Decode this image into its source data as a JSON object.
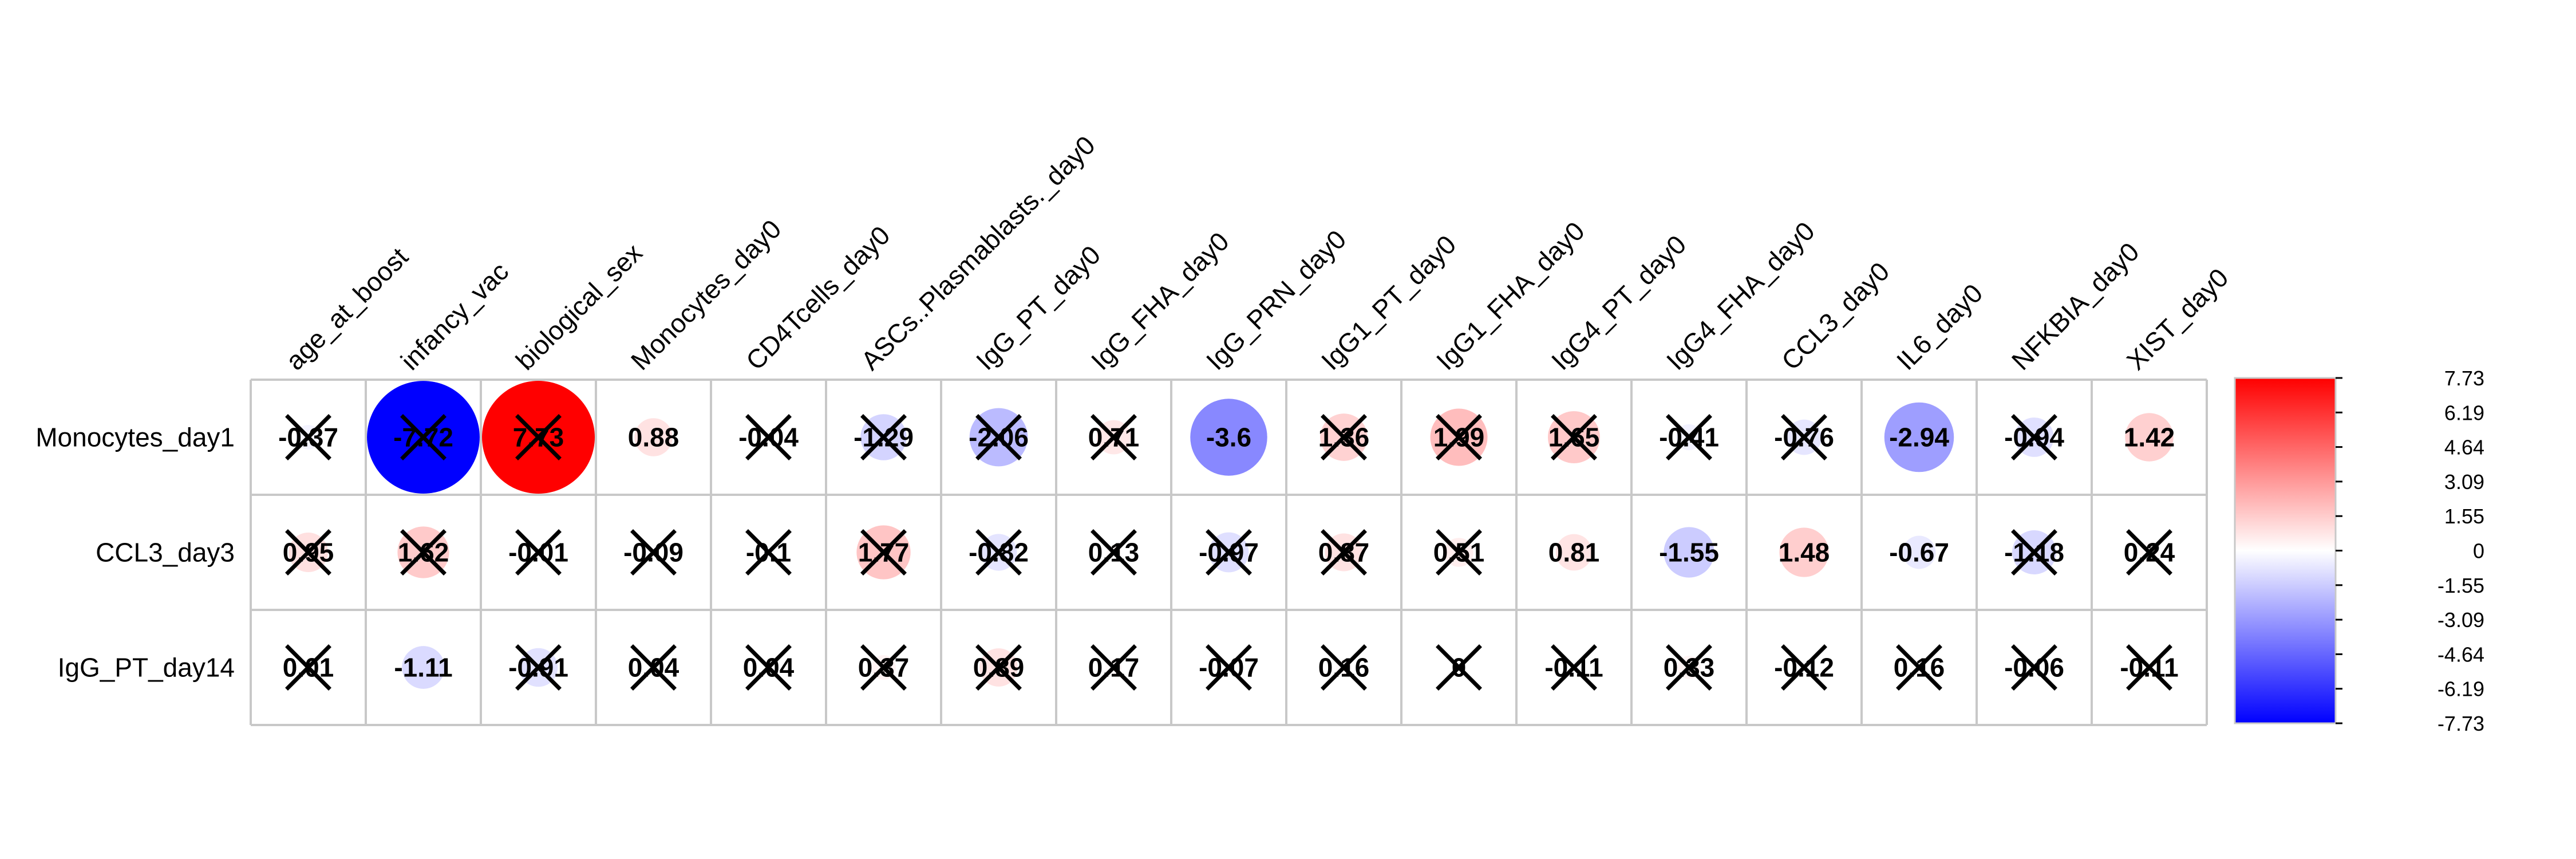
{
  "chart_data": {
    "type": "heatmap",
    "rows": [
      "Monocytes_day1",
      "CCL3_day3",
      "IgG_PT_day14"
    ],
    "columns": [
      "age_at_boost",
      "infancy_vac",
      "biological_sex",
      "Monocytes_day0",
      "CD4Tcells_day0",
      "ASCs..Plasmablasts._day0",
      "IgG_PT_day0",
      "IgG_FHA_day0",
      "IgG_PRN_day0",
      "IgG1_PT_day0",
      "IgG1_FHA_day0",
      "IgG4_PT_day0",
      "IgG4_FHA_day0",
      "CCL3_day0",
      "IL6_day0",
      "NFKBIA_day0",
      "XIST_day0"
    ],
    "values": [
      [
        -0.37,
        -7.72,
        7.73,
        0.88,
        -0.04,
        -1.29,
        -2.06,
        0.71,
        -3.6,
        1.36,
        1.99,
        1.65,
        -0.41,
        -0.76,
        -2.94,
        -0.94,
        1.42
      ],
      [
        0.95,
        1.62,
        -0.01,
        -0.09,
        -0.1,
        1.77,
        -0.82,
        0.13,
        -0.97,
        0.87,
        0.51,
        0.81,
        -1.55,
        1.48,
        -0.67,
        -1.18,
        0.24
      ],
      [
        0.01,
        -1.11,
        -0.91,
        0.04,
        0.04,
        0.37,
        0.89,
        0.17,
        -0.07,
        0.16,
        0,
        -0.11,
        0.33,
        -0.12,
        0.16,
        -0.06,
        -0.11
      ]
    ],
    "crossed": [
      [
        true,
        true,
        true,
        false,
        true,
        true,
        true,
        true,
        false,
        true,
        true,
        true,
        true,
        true,
        false,
        true,
        false
      ],
      [
        true,
        true,
        true,
        true,
        true,
        true,
        true,
        true,
        true,
        true,
        true,
        false,
        false,
        false,
        false,
        true,
        true
      ],
      [
        true,
        false,
        true,
        true,
        true,
        true,
        true,
        true,
        true,
        true,
        true,
        true,
        true,
        true,
        true,
        true,
        true
      ]
    ],
    "value_range": [
      -7.73,
      7.73
    ],
    "legend_ticks": [
      "7.73",
      "6.19",
      "4.64",
      "3.09",
      "1.55",
      "0",
      "-1.55",
      "-3.09",
      "-4.64",
      "-6.19",
      "-7.73"
    ],
    "colors": {
      "negative": "#0000FF",
      "neutral": "#FFFFFF",
      "positive": "#FF0000",
      "grid": "#C8C8C8",
      "text": "#000000"
    }
  }
}
